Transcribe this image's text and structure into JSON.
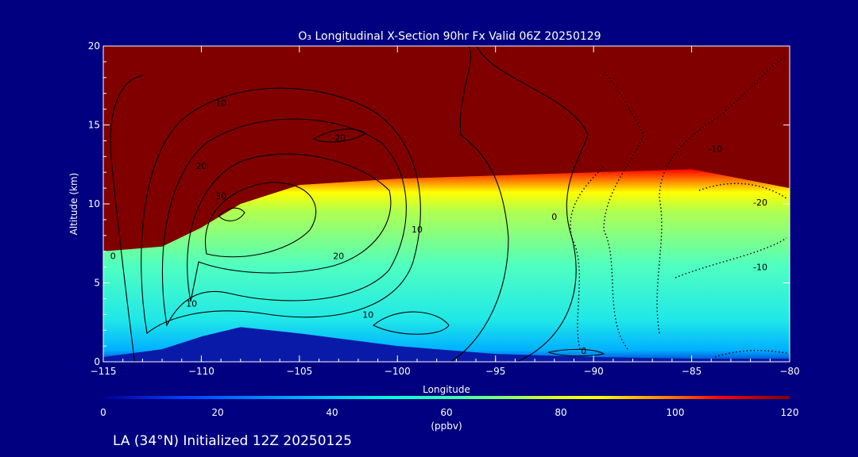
{
  "title": "O₃ Longitudinal X-Section 90hr  Fx Valid 06Z 20250129",
  "footer": "LA (34°N) Initialized 12Z 20250125",
  "colors": {
    "background": "#000080",
    "terrain": "#0a1aa8",
    "scale": [
      "#0000a0",
      "#0048ff",
      "#00c8ff",
      "#40ffd0",
      "#c8ff40",
      "#ffff00",
      "#ff8000",
      "#ff0000",
      "#a00000",
      "#800000"
    ]
  },
  "chart_data": {
    "type": "heatmap",
    "title": "O₃ Longitudinal X-Section 90hr  Fx Valid 06Z 20250129",
    "xlabel": "Longitude",
    "ylabel": "Altitude (km)",
    "xlim": [
      -115,
      -80
    ],
    "ylim": [
      0,
      20
    ],
    "x_ticks": [
      -115,
      -110,
      -105,
      -100,
      -95,
      -90,
      -85,
      -80
    ],
    "y_ticks": [
      0,
      5,
      10,
      15,
      20
    ],
    "colorbar": {
      "label": "(ppbv)",
      "range": [
        0,
        120
      ],
      "ticks": [
        0,
        20,
        40,
        60,
        80,
        100,
        120
      ]
    },
    "ozone_boundary": {
      "description_note": "altitude (km) above which ozone reaches 120 ppbv",
      "lon": [
        -115,
        -112,
        -110,
        -108,
        -105,
        -100,
        -95,
        -90,
        -85,
        -80
      ],
      "alt_km": [
        7.0,
        7.3,
        8.5,
        10.0,
        11.2,
        11.6,
        11.8,
        12.0,
        12.2,
        11.0
      ]
    },
    "terrain": {
      "lon": [
        -115,
        -112,
        -110,
        -108,
        -105,
        -100,
        -95,
        -90,
        -85,
        -80
      ],
      "alt_km": [
        0.3,
        0.8,
        1.6,
        2.2,
        1.8,
        1.0,
        0.5,
        0.3,
        0.2,
        0.2
      ]
    },
    "contour_labels": [
      {
        "text": "10",
        "lon": -109.0,
        "alt": 16.2
      },
      {
        "text": "-20",
        "lon": -103.0,
        "alt": 14.0
      },
      {
        "text": "20",
        "lon": -110.0,
        "alt": 12.2
      },
      {
        "text": "30",
        "lon": -109.0,
        "alt": 10.3
      },
      {
        "text": "0",
        "lon": -114.5,
        "alt": 6.5
      },
      {
        "text": "20",
        "lon": -103.0,
        "alt": 6.5
      },
      {
        "text": "10",
        "lon": -99.0,
        "alt": 8.2
      },
      {
        "text": "0",
        "lon": -92.0,
        "alt": 9.0
      },
      {
        "text": "10",
        "lon": -110.5,
        "alt": 3.5
      },
      {
        "text": "10",
        "lon": -101.5,
        "alt": 2.8
      },
      {
        "text": "0",
        "lon": -90.5,
        "alt": 0.5
      },
      {
        "text": "-10",
        "lon": -83.8,
        "alt": 13.3
      },
      {
        "text": "-20",
        "lon": -81.5,
        "alt": 9.9
      },
      {
        "text": "-10",
        "lon": -81.5,
        "alt": 5.8
      }
    ]
  }
}
